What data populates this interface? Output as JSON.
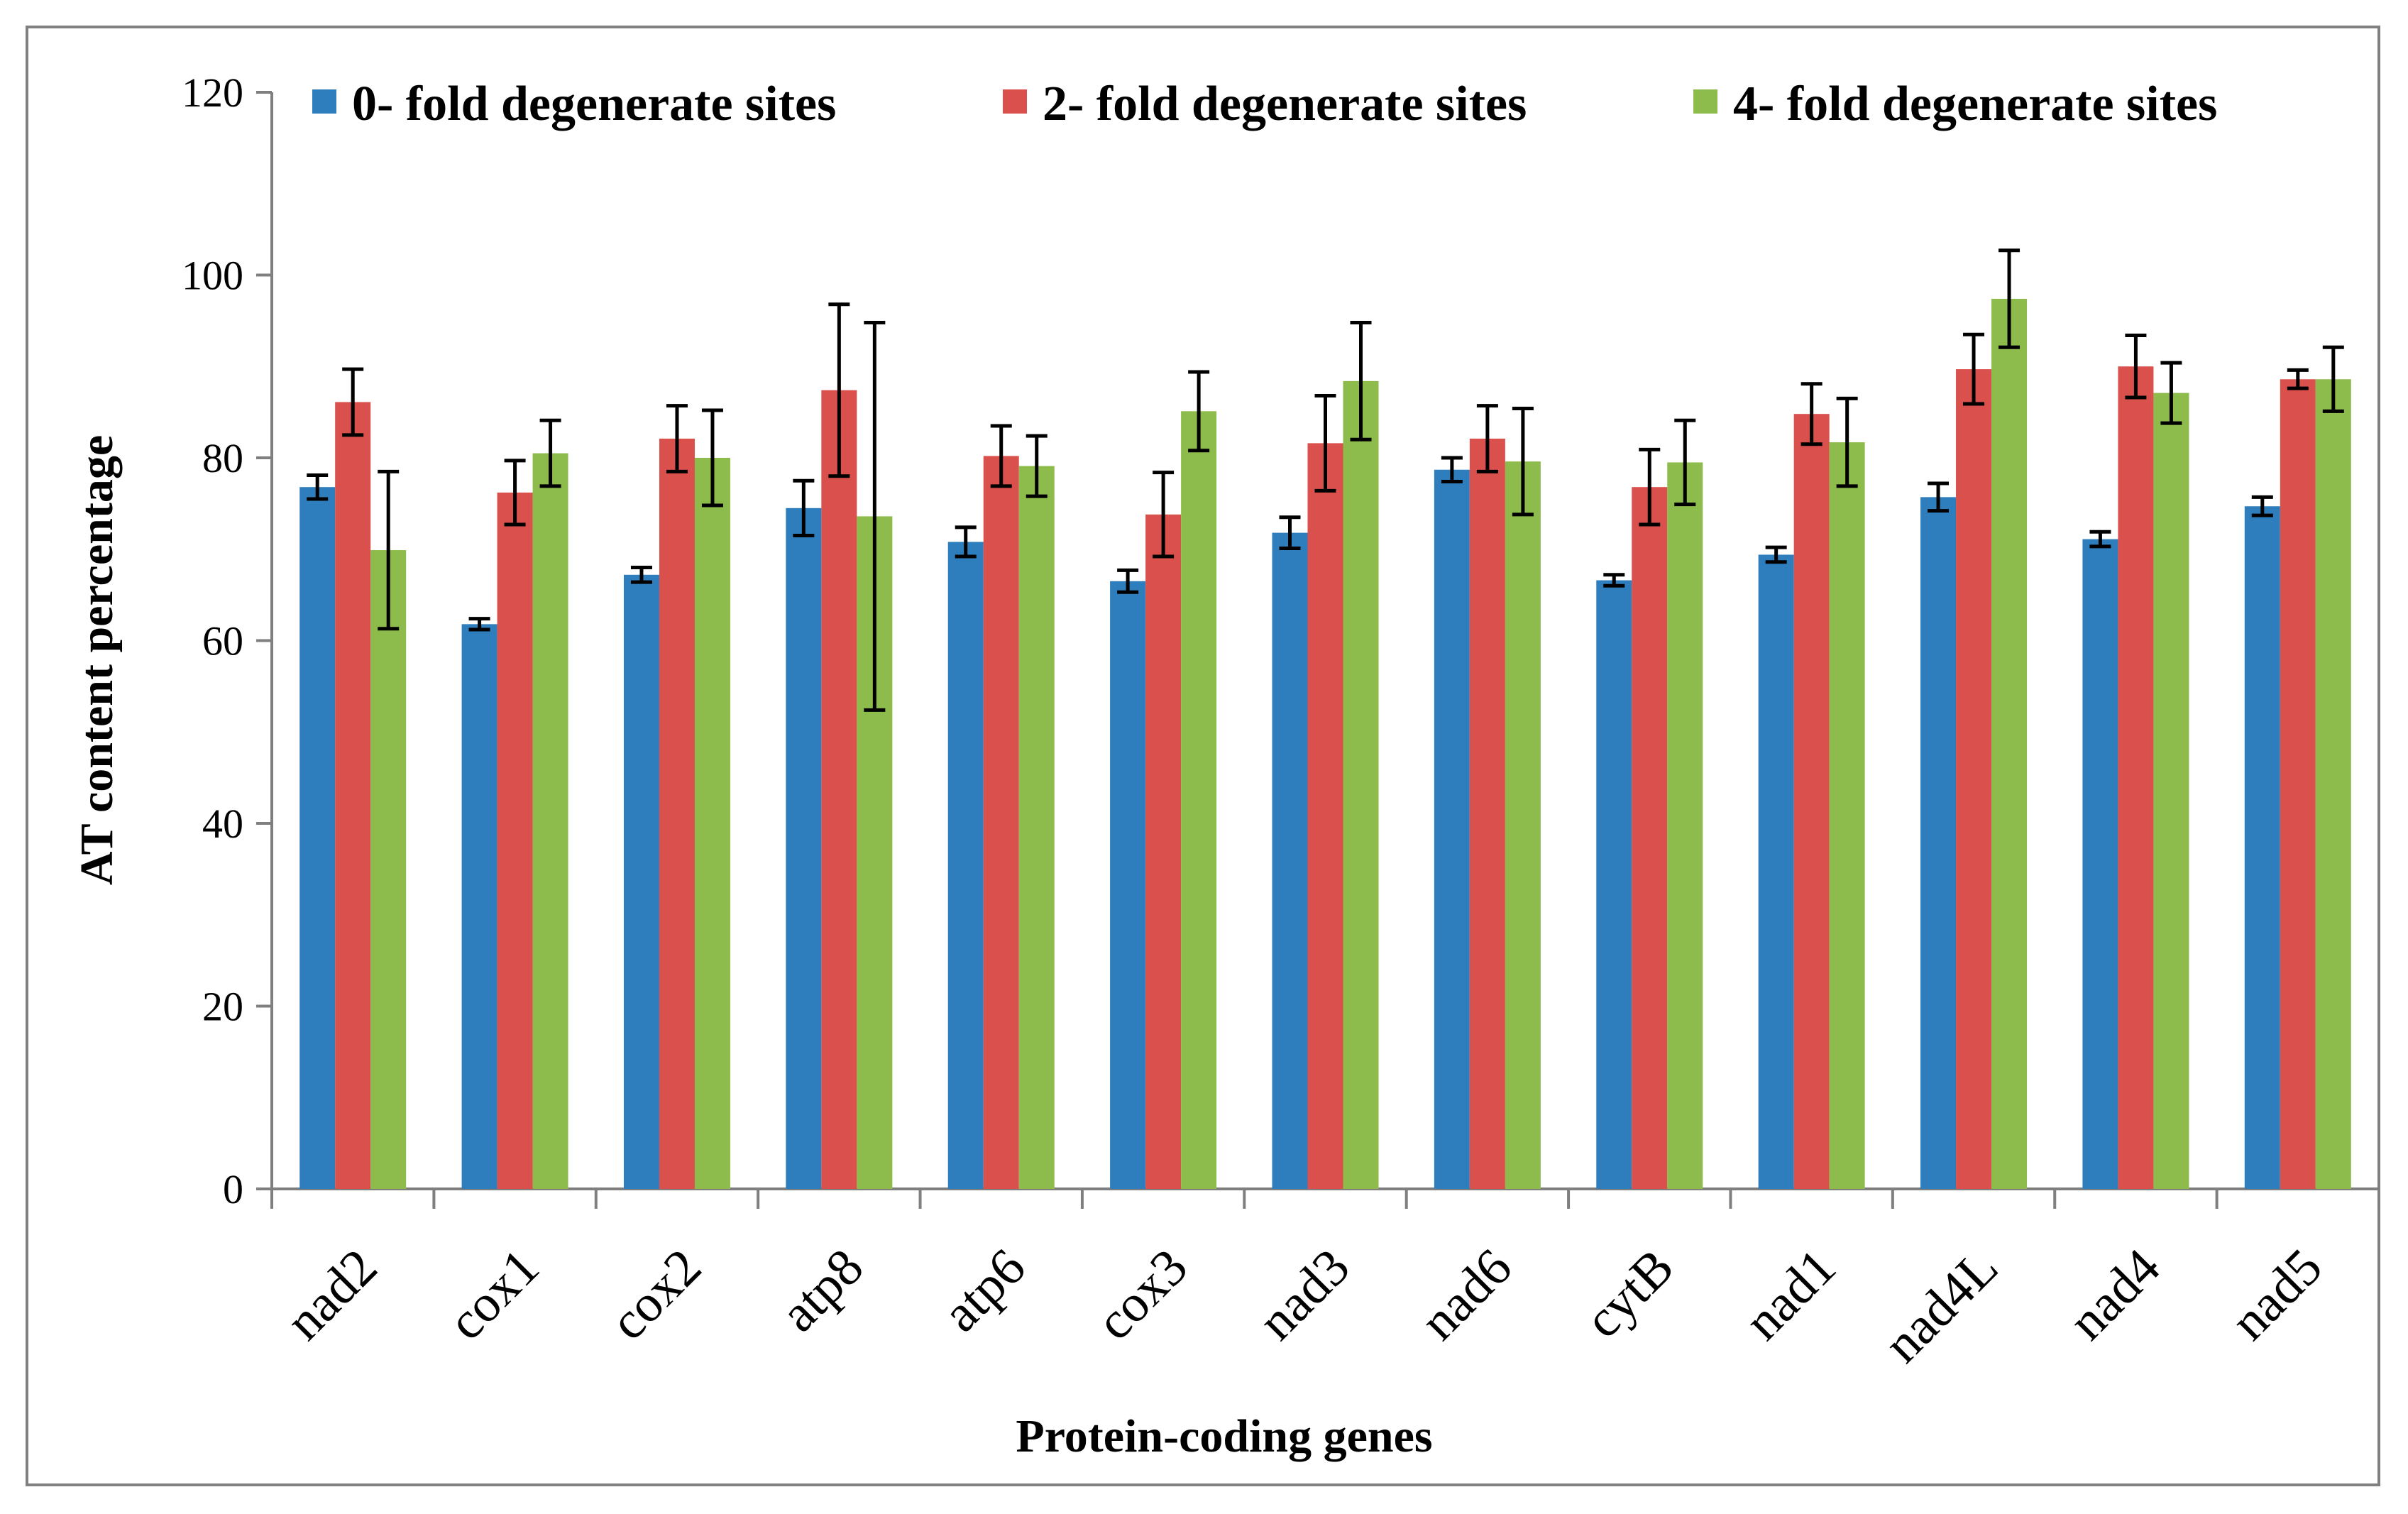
{
  "chart_data": {
    "type": "bar",
    "title": "",
    "xlabel": "Protein-coding genes",
    "ylabel": "AT content percentage",
    "ylim": [
      0,
      120
    ],
    "yticks": [
      0,
      20,
      40,
      60,
      80,
      100,
      120
    ],
    "grid": false,
    "legend_position": "top",
    "categories": [
      "nad2",
      "cox1",
      "cox2",
      "atp8",
      "atp6",
      "cox3",
      "nad3",
      "nad6",
      "cytB",
      "nad1",
      "nad4L",
      "nad4",
      "nad5"
    ],
    "series": [
      {
        "name": "0- fold degenerate sites",
        "color": "#2e7ebd",
        "values": [
          76.8,
          61.8,
          67.2,
          74.5,
          70.8,
          66.5,
          71.8,
          78.7,
          66.6,
          69.4,
          75.7,
          71.1,
          74.7
        ],
        "errors": [
          1.3,
          0.6,
          0.8,
          3.0,
          1.6,
          1.2,
          1.7,
          1.3,
          0.6,
          0.8,
          1.5,
          0.8,
          1.0
        ]
      },
      {
        "name": "2- fold degenerate sites",
        "color": "#d9504c",
        "values": [
          86.1,
          76.2,
          82.1,
          87.4,
          80.2,
          73.8,
          81.6,
          82.1,
          76.8,
          84.8,
          89.7,
          90.0,
          88.6
        ],
        "errors": [
          3.6,
          3.5,
          3.6,
          9.4,
          3.3,
          4.6,
          5.2,
          3.6,
          4.1,
          3.3,
          3.8,
          3.4,
          1.0
        ]
      },
      {
        "name": "4- fold degenerate sites",
        "color": "#8ebc4c",
        "values": [
          69.9,
          80.5,
          80.0,
          73.6,
          79.1,
          85.1,
          88.4,
          79.6,
          79.5,
          81.7,
          97.4,
          87.1,
          88.6
        ],
        "errors": [
          8.6,
          3.6,
          5.2,
          21.2,
          3.3,
          4.3,
          6.4,
          5.8,
          4.6,
          4.8,
          5.3,
          3.3,
          3.5
        ]
      }
    ]
  }
}
